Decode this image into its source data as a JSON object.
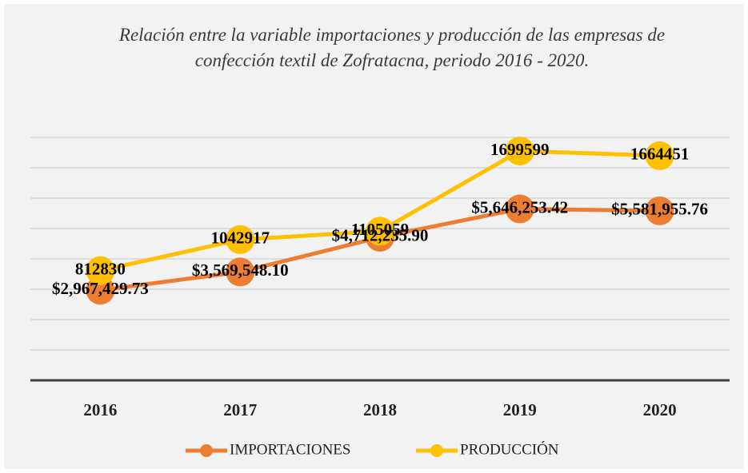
{
  "chart_data": {
    "type": "line",
    "title": "Relación entre la variable importaciones y producción de las empresas de confección textil de Zofratacna, periodo 2016 - 2020.",
    "categories": [
      "2016",
      "2017",
      "2018",
      "2019",
      "2020"
    ],
    "series": [
      {
        "name": "IMPORTACIONES",
        "color": "#ed7d31",
        "values": [
          2967429.73,
          3569548.1,
          4712235.9,
          5646253.42,
          5581955.76
        ],
        "value_labels": [
          "$2,967,429.73",
          "$3,569,548.10",
          "$4,712,235.90",
          "$5,646,253.42",
          "$5,581,955.76"
        ]
      },
      {
        "name": "PRODUCCIÓN",
        "color": "#ffc000",
        "axis": "y2",
        "values": [
          812830,
          1042917,
          1105059,
          1699599,
          1664451
        ]
      }
    ],
    "ylim": [
      0,
      8000000
    ],
    "yticks": [
      0,
      1000000,
      2000000,
      3000000,
      4000000,
      5000000,
      6000000,
      7000000,
      8000000
    ],
    "y2lim": [
      0,
      1800000
    ],
    "grid": true,
    "legend": "bottom"
  }
}
